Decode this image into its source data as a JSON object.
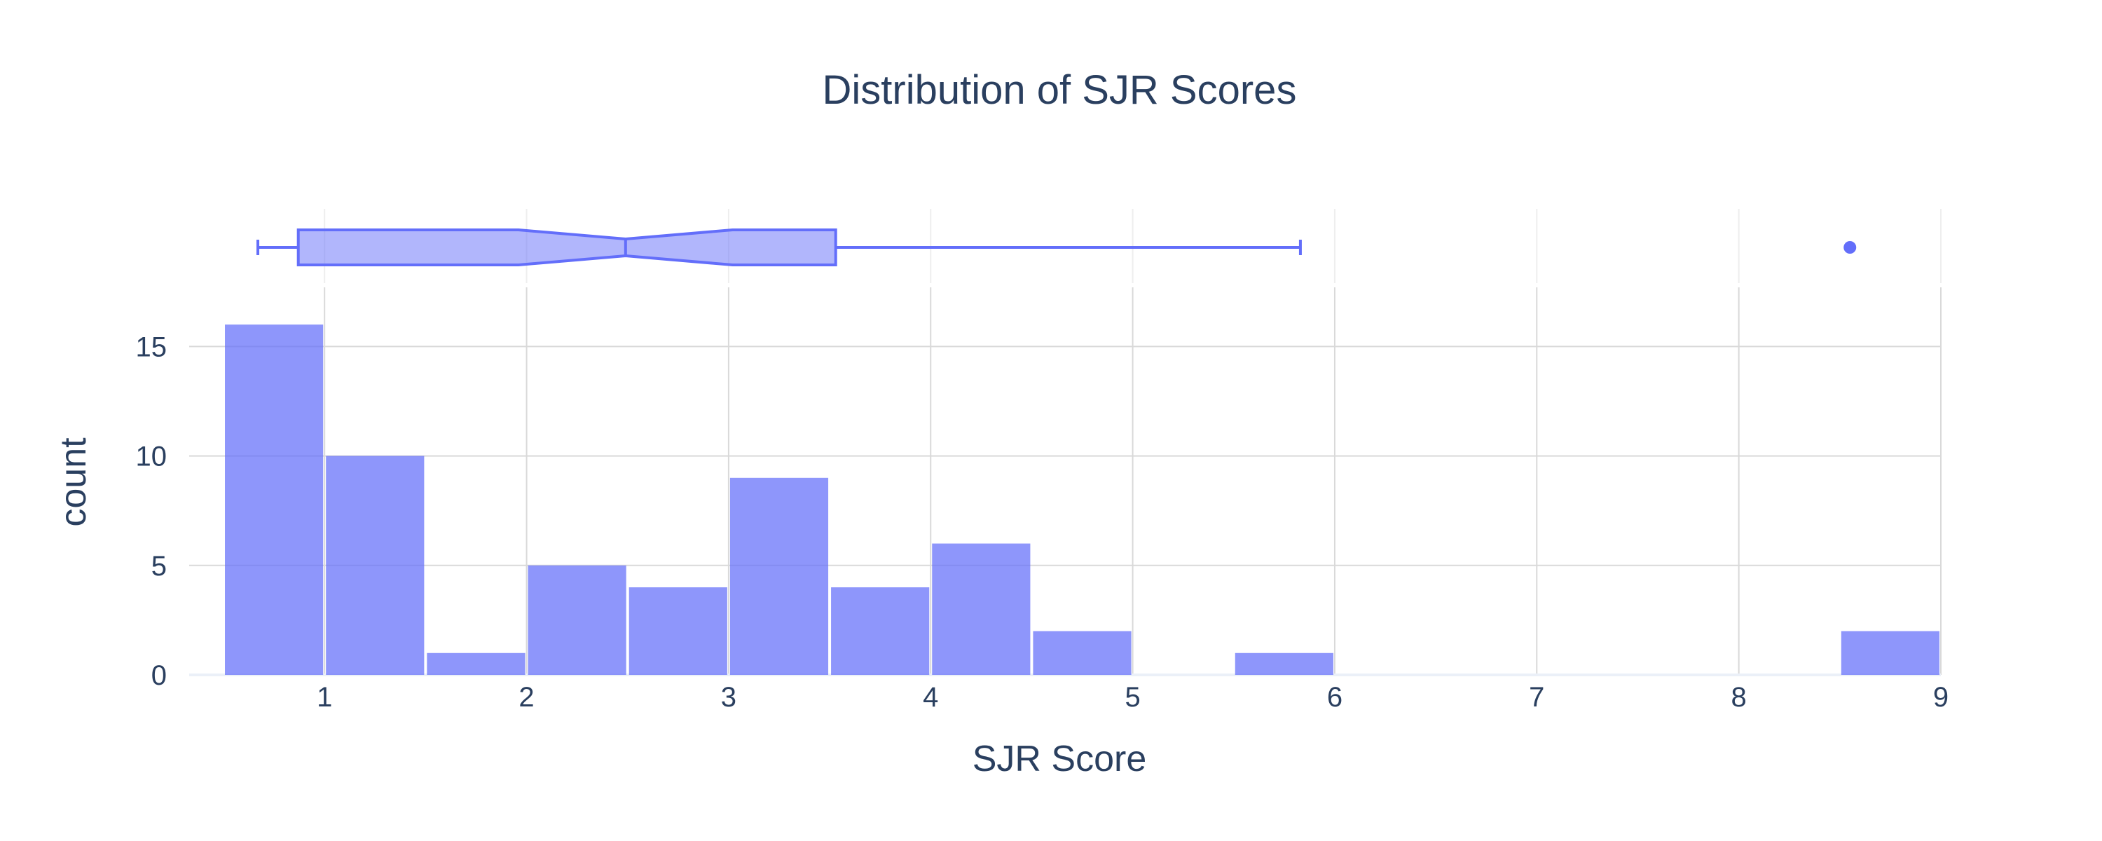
{
  "chart_data": {
    "type": "histogram",
    "title": "Distribution of SJR Scores",
    "xlabel": "SJR Score",
    "ylabel": "count",
    "xlim": [
      0.33,
      9
    ],
    "ylim": [
      0,
      17.7
    ],
    "x_ticks": [
      1,
      2,
      3,
      4,
      5,
      6,
      7,
      8,
      9
    ],
    "y_ticks": [
      0,
      5,
      10,
      15
    ],
    "bins": [
      {
        "start": 0.5,
        "end": 1.0,
        "count": 16
      },
      {
        "start": 1.0,
        "end": 1.5,
        "count": 10
      },
      {
        "start": 1.5,
        "end": 2.0,
        "count": 1
      },
      {
        "start": 2.0,
        "end": 2.5,
        "count": 5
      },
      {
        "start": 2.5,
        "end": 3.0,
        "count": 4
      },
      {
        "start": 3.0,
        "end": 3.5,
        "count": 9
      },
      {
        "start": 3.5,
        "end": 4.0,
        "count": 4
      },
      {
        "start": 4.0,
        "end": 4.5,
        "count": 6
      },
      {
        "start": 4.5,
        "end": 5.0,
        "count": 2
      },
      {
        "start": 5.0,
        "end": 5.5,
        "count": 0
      },
      {
        "start": 5.5,
        "end": 6.0,
        "count": 1
      },
      {
        "start": 6.0,
        "end": 6.5,
        "count": 0
      },
      {
        "start": 6.5,
        "end": 7.0,
        "count": 0
      },
      {
        "start": 7.0,
        "end": 7.5,
        "count": 0
      },
      {
        "start": 7.5,
        "end": 8.0,
        "count": 0
      },
      {
        "start": 8.0,
        "end": 8.5,
        "count": 0
      },
      {
        "start": 8.5,
        "end": 9.0,
        "count": 2
      }
    ],
    "marginal_box": {
      "lower_fence": 0.67,
      "q1": 0.87,
      "notch_low": 1.96,
      "median": 2.49,
      "notch_high": 3.02,
      "q3": 3.53,
      "upper_fence": 5.83,
      "outliers": [
        8.55
      ]
    },
    "colors": {
      "bar": "#636efa",
      "grid": "#d9d9d9",
      "text": "#2a3f5f"
    },
    "grid": true
  }
}
